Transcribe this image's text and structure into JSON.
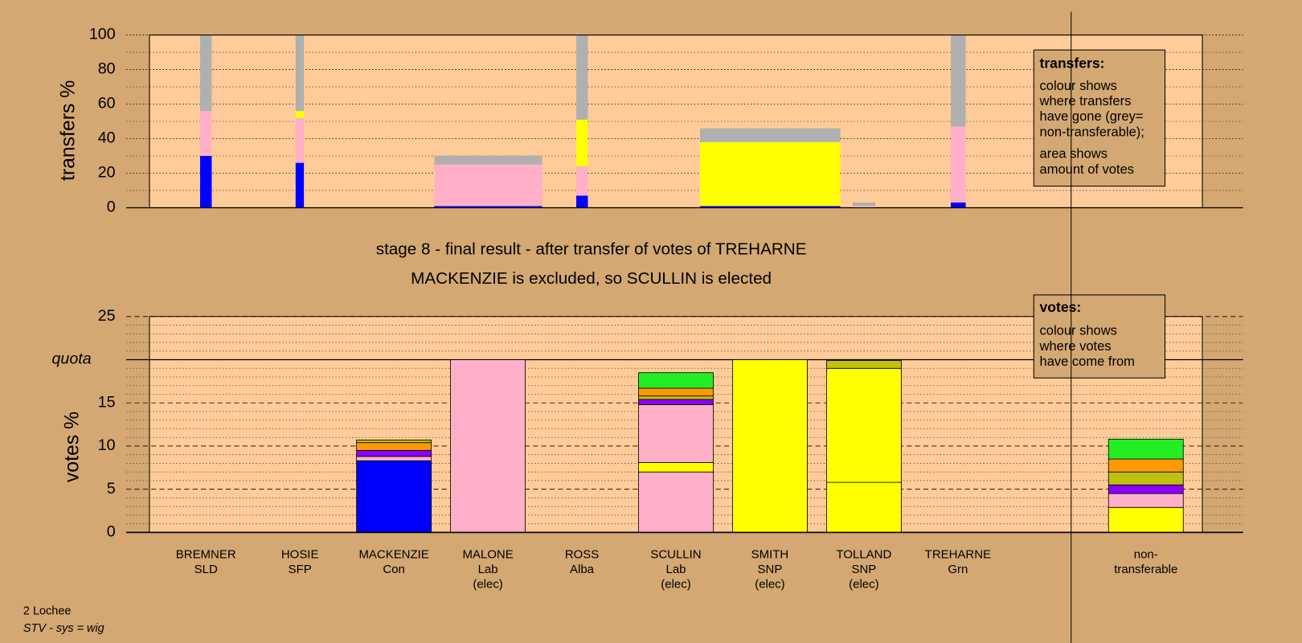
{
  "chart_data": [
    {
      "type": "bar",
      "ylabel": "transfers %",
      "ylim": [
        0,
        100
      ],
      "yticks": [
        0,
        20,
        40,
        60,
        80,
        100
      ],
      "note": {
        "title": "transfers:",
        "lines": [
          "colour shows",
          "where transfers",
          "have gone (grey=",
          "non-transferable);",
          "area shows",
          "amount of votes"
        ]
      },
      "bars": [
        {
          "segments": [
            {
              "color": "#0000ff",
              "value": 30
            },
            {
              "color": "#ffb0c8",
              "value": 26
            },
            {
              "color": "#b0b0b0",
              "value": 44
            }
          ]
        },
        {
          "segments": [
            {
              "color": "#0000ff",
              "value": 26
            },
            {
              "color": "#ffb0c8",
              "value": 26
            },
            {
              "color": "#ffff00",
              "value": 4
            },
            {
              "color": "#b0b0b0",
              "value": 44
            }
          ]
        },
        {
          "segments": [
            {
              "color": "#0000ff",
              "value": 1
            },
            {
              "color": "#ffb0c8",
              "value": 24
            },
            {
              "color": "#b0b0b0",
              "value": 5
            }
          ]
        },
        {
          "segments": [
            {
              "color": "#0000ff",
              "value": 7
            },
            {
              "color": "#ffb0c8",
              "value": 17
            },
            {
              "color": "#ffff00",
              "value": 27
            },
            {
              "color": "#b0b0b0",
              "value": 49
            }
          ]
        },
        {
          "segments": [
            {
              "color": "#0000ff",
              "value": 1
            },
            {
              "color": "#ffff00",
              "value": 37
            },
            {
              "color": "#b0b0b0",
              "value": 8
            }
          ]
        },
        {
          "segments": [
            {
              "color": "#ffb0c8",
              "value": 1
            },
            {
              "color": "#b0b0b0",
              "value": 2
            }
          ]
        },
        {
          "segments": [
            {
              "color": "#0000ff",
              "value": 3
            },
            {
              "color": "#ffb0c8",
              "value": 44
            },
            {
              "color": "#b0b0b0",
              "value": 53
            }
          ]
        }
      ]
    },
    {
      "type": "bar",
      "title": "stage 8 - final result - after transfer of votes of TREHARNE",
      "subtitle": "MACKENZIE is excluded, so SCULLIN is elected",
      "ylabel": "votes %",
      "ylim": [
        0,
        25
      ],
      "yticks": [
        0,
        5,
        10,
        15,
        {
          "value": 20,
          "label": "quota"
        },
        25
      ],
      "note": {
        "title": "votes:",
        "lines": [
          "colour shows",
          "where votes",
          "have come from"
        ]
      },
      "categories": [
        [
          "BREMNER",
          "SLD"
        ],
        [
          "HOSIE",
          "SFP"
        ],
        [
          "MACKENZIE",
          "Con"
        ],
        [
          "MALONE",
          "Lab",
          "(elec)"
        ],
        [
          "ROSS",
          "Alba"
        ],
        [
          "SCULLIN",
          "Lab",
          "(elec)"
        ],
        [
          "SMITH",
          "SNP",
          "(elec)"
        ],
        [
          "TOLLAND",
          "SNP",
          "(elec)"
        ],
        [
          "TREHARNE",
          "Grn"
        ],
        null,
        [
          "non-",
          "transferable"
        ]
      ],
      "bars": [
        {
          "segments": []
        },
        {
          "segments": []
        },
        {
          "segments": [
            {
              "color": "#0000ff",
              "value": 8.3
            },
            {
              "color": "#ffb0c8",
              "value": 0.5
            },
            {
              "color": "#8b00ff",
              "value": 0.7
            },
            {
              "color": "#ff9900",
              "value": 0.9
            },
            {
              "color": "#c0c010",
              "value": 0.3
            }
          ]
        },
        {
          "segments": [
            {
              "color": "#ffb0c8",
              "value": 20
            }
          ]
        },
        {
          "segments": []
        },
        {
          "segments": [
            {
              "color": "#ffb0c8",
              "value": 7
            },
            {
              "color": "#ffff00",
              "value": 1.1
            },
            {
              "color": "#ffb0c8",
              "value": 6.7
            },
            {
              "color": "#8b00ff",
              "value": 0.6
            },
            {
              "color": "#c0c010",
              "value": 0.4
            },
            {
              "color": "#ff9900",
              "value": 0.9
            },
            {
              "color": "#22ee22",
              "value": 1.8
            }
          ]
        },
        {
          "segments": [
            {
              "color": "#ffff00",
              "value": 20
            }
          ]
        },
        {
          "segments": [
            {
              "color": "#ffff00",
              "value": 5.8
            },
            {
              "color": "#ffff00",
              "value": 13.2
            },
            {
              "color": "#c0c010",
              "value": 0.9
            }
          ]
        },
        {
          "segments": []
        },
        {
          "segments": []
        },
        {
          "segments": [
            {
              "color": "#ffff00",
              "value": 2.9
            },
            {
              "color": "#ffb0c8",
              "value": 1.6
            },
            {
              "color": "#8b00ff",
              "value": 1
            },
            {
              "color": "#c0c010",
              "value": 1.5
            },
            {
              "color": "#ff9900",
              "value": 1.5
            },
            {
              "color": "#22ee22",
              "value": 2.3
            }
          ]
        }
      ]
    }
  ],
  "footer": {
    "place": "2 Lochee",
    "system": "STV - sys = wig"
  }
}
